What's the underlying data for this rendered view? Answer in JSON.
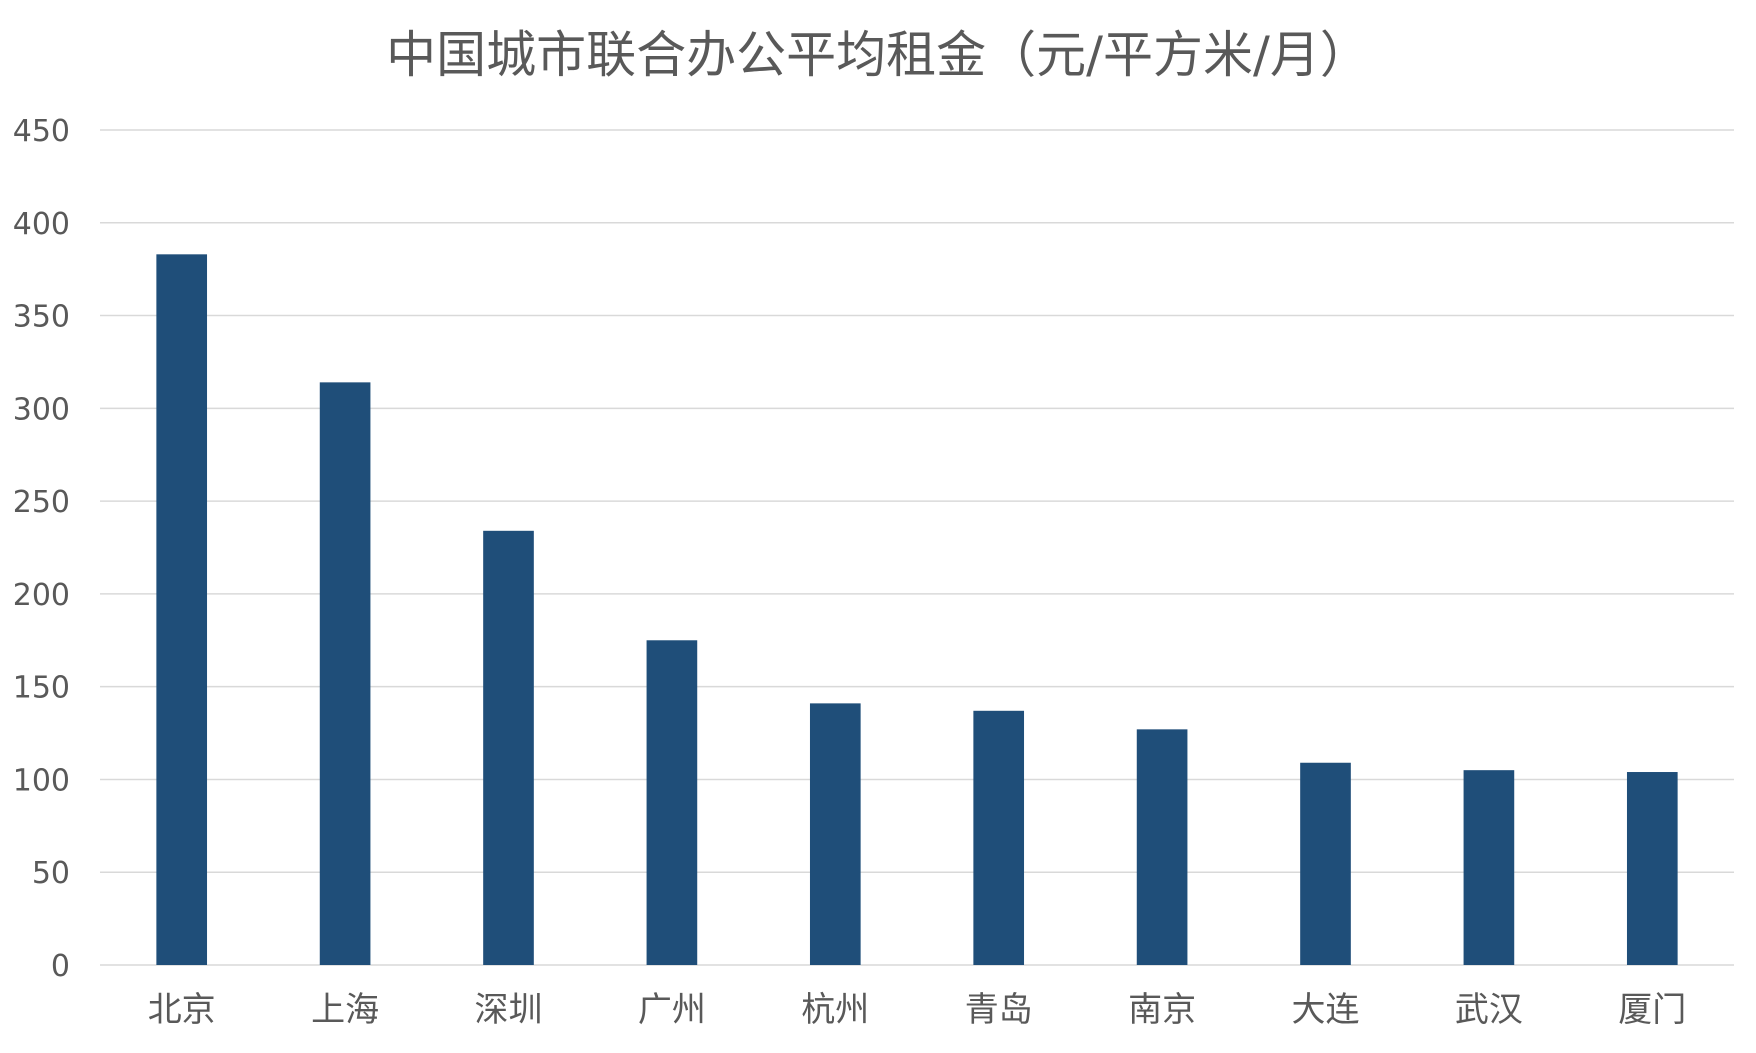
{
  "chart_data": {
    "type": "bar",
    "title": "中国城市联合办公平均租金（元/平方米/月）",
    "xlabel": "",
    "ylabel": "",
    "categories": [
      "北京",
      "上海",
      "深圳",
      "广州",
      "杭州",
      "青岛",
      "南京",
      "大连",
      "武汉",
      "厦门"
    ],
    "values": [
      383,
      314,
      234,
      175,
      141,
      137,
      127,
      109,
      105,
      104
    ],
    "ylim": [
      0,
      450
    ],
    "yticks": [
      0,
      50,
      100,
      150,
      200,
      250,
      300,
      350,
      400,
      450
    ],
    "grid": true,
    "legend": "none",
    "bar_color": "#1f4e79"
  }
}
